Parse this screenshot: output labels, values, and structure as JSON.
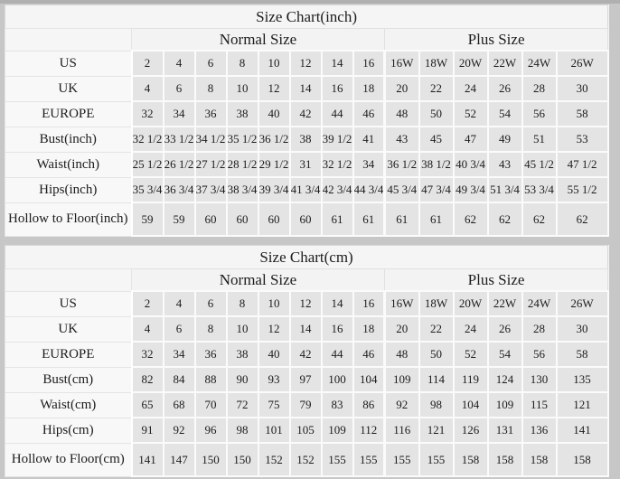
{
  "colors": {
    "canvas_background": "#c7c7c7",
    "table_background": "#f5f5f5",
    "data_cell_background": "#e4e4e4",
    "label_cell_background": "#f8f8f8",
    "grid_line": "#fbfbfb",
    "text": "#1c1c1c"
  },
  "chart_data": [
    {
      "type": "table",
      "title": "Size Chart(inch)",
      "column_groups": [
        {
          "label": "Normal Size",
          "span": 8
        },
        {
          "label": "Plus Size",
          "span": 6
        }
      ],
      "rows": [
        {
          "label": "US",
          "values": [
            "2",
            "4",
            "6",
            "8",
            "10",
            "12",
            "14",
            "16",
            "16W",
            "18W",
            "20W",
            "22W",
            "24W",
            "26W"
          ]
        },
        {
          "label": "UK",
          "values": [
            "4",
            "6",
            "8",
            "10",
            "12",
            "14",
            "16",
            "18",
            "20",
            "22",
            "24",
            "26",
            "28",
            "30"
          ]
        },
        {
          "label": "EUROPE",
          "values": [
            "32",
            "34",
            "36",
            "38",
            "40",
            "42",
            "44",
            "46",
            "48",
            "50",
            "52",
            "54",
            "56",
            "58"
          ]
        },
        {
          "label": "Bust(inch)",
          "values": [
            "32 1/2",
            "33 1/2",
            "34 1/2",
            "35 1/2",
            "36 1/2",
            "38",
            "39 1/2",
            "41",
            "43",
            "45",
            "47",
            "49",
            "51",
            "53"
          ]
        },
        {
          "label": "Waist(inch)",
          "values": [
            "25 1/2",
            "26 1/2",
            "27 1/2",
            "28 1/2",
            "29 1/2",
            "31",
            "32 1/2",
            "34",
            "36 1/2",
            "38 1/2",
            "40 3/4",
            "43",
            "45 1/2",
            "47 1/2"
          ]
        },
        {
          "label": "Hips(inch)",
          "values": [
            "35 3/4",
            "36 3/4",
            "37 3/4",
            "38 3/4",
            "39 3/4",
            "41 3/4",
            "42 3/4",
            "44 3/4",
            "45 3/4",
            "47 3/4",
            "49 3/4",
            "51 3/4",
            "53 3/4",
            "55 1/2"
          ]
        },
        {
          "label": "Hollow to Floor(inch)",
          "values": [
            "59",
            "59",
            "60",
            "60",
            "60",
            "60",
            "61",
            "61",
            "61",
            "61",
            "62",
            "62",
            "62",
            "62"
          ]
        }
      ]
    },
    {
      "type": "table",
      "title": "Size Chart(cm)",
      "column_groups": [
        {
          "label": "Normal Size",
          "span": 8
        },
        {
          "label": "Plus Size",
          "span": 6
        }
      ],
      "rows": [
        {
          "label": "US",
          "values": [
            "2",
            "4",
            "6",
            "8",
            "10",
            "12",
            "14",
            "16",
            "16W",
            "18W",
            "20W",
            "22W",
            "24W",
            "26W"
          ]
        },
        {
          "label": "UK",
          "values": [
            "4",
            "6",
            "8",
            "10",
            "12",
            "14",
            "16",
            "18",
            "20",
            "22",
            "24",
            "26",
            "28",
            "30"
          ]
        },
        {
          "label": "EUROPE",
          "values": [
            "32",
            "34",
            "36",
            "38",
            "40",
            "42",
            "44",
            "46",
            "48",
            "50",
            "52",
            "54",
            "56",
            "58"
          ]
        },
        {
          "label": "Bust(cm)",
          "values": [
            "82",
            "84",
            "88",
            "90",
            "93",
            "97",
            "100",
            "104",
            "109",
            "114",
            "119",
            "124",
            "130",
            "135"
          ]
        },
        {
          "label": "Waist(cm)",
          "values": [
            "65",
            "68",
            "70",
            "72",
            "75",
            "79",
            "83",
            "86",
            "92",
            "98",
            "104",
            "109",
            "115",
            "121"
          ]
        },
        {
          "label": "Hips(cm)",
          "values": [
            "91",
            "92",
            "96",
            "98",
            "101",
            "105",
            "109",
            "112",
            "116",
            "121",
            "126",
            "131",
            "136",
            "141"
          ]
        },
        {
          "label": "Hollow to Floor(cm)",
          "values": [
            "141",
            "147",
            "150",
            "150",
            "152",
            "152",
            "155",
            "155",
            "155",
            "155",
            "158",
            "158",
            "158",
            "158"
          ]
        }
      ]
    }
  ]
}
